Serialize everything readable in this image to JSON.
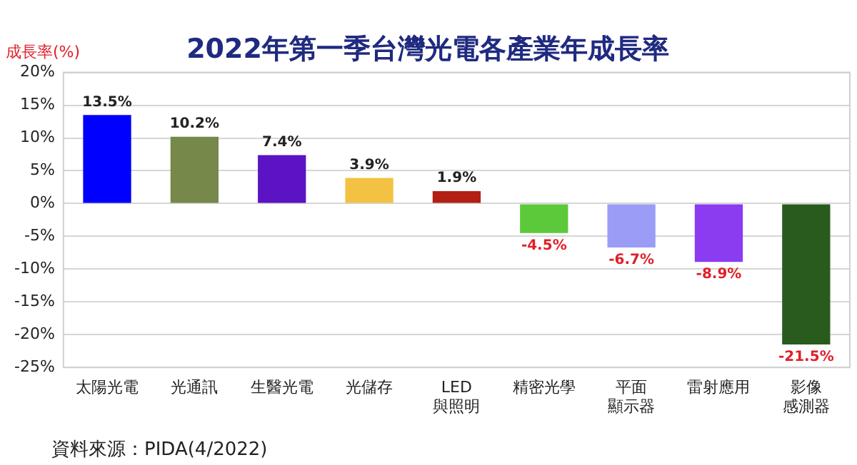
{
  "chart_data": {
    "type": "bar",
    "title": "2022年第一季台灣光電各產業年成長率",
    "ylabel": "成長率(%)",
    "categories": [
      "太陽光電",
      "光通訊",
      "生醫光電",
      "光儲存",
      "LED\n與照明",
      "精密光學",
      "平面顯示器",
      "雷射應用",
      "影像感測器"
    ],
    "values": [
      13.5,
      10.2,
      7.4,
      3.9,
      1.9,
      -4.5,
      -6.7,
      -8.9,
      -21.5
    ],
    "colors": [
      "#0000ff",
      "#76884a",
      "#5b13c4",
      "#f4c242",
      "#b22014",
      "#5cc93a",
      "#9a9cf6",
      "#8b3cf0",
      "#295c1c"
    ],
    "value_labels": [
      "13.5%",
      "10.2%",
      "7.4%",
      "3.9%",
      "1.9%",
      "-4.5%",
      "-6.7%",
      "-8.9%",
      "-21.5%"
    ],
    "ylim": [
      -25,
      20
    ],
    "yticks": [
      {
        "value": -25,
        "label": "-25%"
      },
      {
        "value": -20,
        "label": "-20%"
      },
      {
        "value": -15,
        "label": "-15%"
      },
      {
        "value": -10,
        "label": "-10%"
      },
      {
        "value": -5,
        "label": "-5%"
      },
      {
        "value": 0,
        "label": "0%"
      },
      {
        "value": 5,
        "label": "5%"
      },
      {
        "value": 10,
        "label": "10%"
      },
      {
        "value": 15,
        "label": "15%"
      },
      {
        "value": 20,
        "label": "20%"
      }
    ],
    "grid": "y",
    "legend": false,
    "annotations": [
      "資料來源：PIDA(4/2022)"
    ]
  }
}
